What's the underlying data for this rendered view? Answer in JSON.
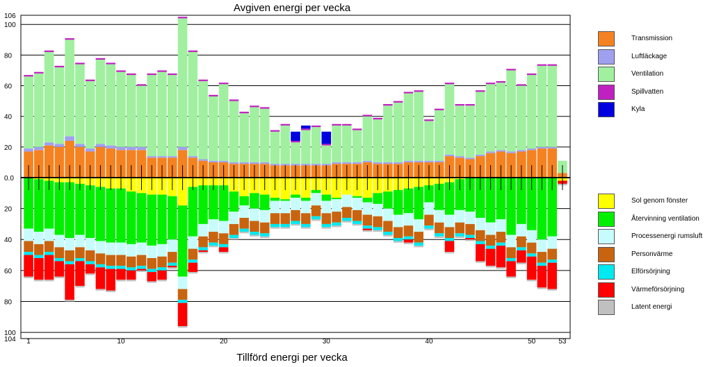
{
  "chart_data": {
    "type": "bar",
    "stacked": true,
    "title": "Avgiven energi per vecka",
    "subtitle": "Tillförd energi per vecka",
    "x": [
      1,
      2,
      3,
      4,
      5,
      6,
      7,
      8,
      9,
      10,
      11,
      12,
      13,
      14,
      15,
      16,
      17,
      18,
      19,
      20,
      21,
      22,
      23,
      24,
      25,
      26,
      27,
      28,
      29,
      30,
      31,
      32,
      33,
      34,
      35,
      36,
      37,
      38,
      39,
      40,
      41,
      42,
      43,
      44,
      45,
      46,
      47,
      48,
      49,
      50,
      51,
      52,
      53
    ],
    "x_ticks": [
      1,
      10,
      20,
      30,
      40,
      50,
      53
    ],
    "y_top_range": [
      0,
      106
    ],
    "y_bottom_range": [
      0,
      104
    ],
    "y_top_ticks": [
      106,
      100,
      80,
      60,
      40,
      20
    ],
    "y_bottom_ticks": [
      0.0,
      20,
      40,
      60,
      80,
      100,
      104
    ],
    "grid": true,
    "legend_position": "right",
    "top_series": [
      {
        "name": "Transmission",
        "color": "#f58220",
        "values": [
          17,
          18,
          21,
          20,
          24,
          20,
          17,
          20,
          19,
          18,
          18,
          18,
          13,
          13,
          13,
          18,
          13,
          11,
          10,
          10,
          9,
          9,
          9,
          9,
          8,
          8,
          8,
          8,
          8,
          8,
          9,
          9,
          9,
          10,
          9,
          9,
          9,
          10,
          10,
          10,
          10,
          14,
          13,
          12,
          14,
          16,
          17,
          16,
          17,
          18,
          19,
          19,
          3
        ]
      },
      {
        "name": "Luftläckage",
        "color": "#a0a0f0",
        "values": [
          2,
          2,
          2,
          2,
          3,
          2,
          2,
          2,
          2,
          2,
          2,
          2,
          1,
          1,
          1,
          2,
          1,
          1,
          1,
          1,
          1,
          1,
          1,
          1,
          1,
          1,
          1,
          1,
          1,
          1,
          1,
          1,
          1,
          1,
          1,
          1,
          1,
          1,
          1,
          1,
          1,
          1,
          1,
          1,
          1,
          1,
          1,
          1,
          1,
          1,
          1,
          1,
          0
        ]
      },
      {
        "name": "Ventilation",
        "color": "#a0f0a0",
        "values": [
          47,
          48,
          59,
          50,
          63,
          52,
          44,
          55,
          53,
          49,
          47,
          40,
          53,
          55,
          53,
          84,
          68,
          51,
          42,
          50,
          40,
          32,
          36,
          35,
          21,
          25,
          14,
          22,
          24,
          12,
          24,
          24,
          21,
          29,
          28,
          37,
          39,
          44,
          45,
          26,
          33,
          46,
          33,
          34,
          41,
          44,
          44,
          53,
          42,
          48,
          53,
          53,
          8
        ]
      },
      {
        "name": "Spillvatten",
        "color": "#c020c0",
        "values": [
          1,
          1,
          1,
          1,
          1,
          1,
          1,
          1,
          1,
          1,
          1,
          1,
          1,
          1,
          1,
          1,
          1,
          1,
          1,
          1,
          1,
          1,
          1,
          1,
          1,
          1,
          1,
          1,
          1,
          1,
          1,
          1,
          1,
          1,
          1,
          1,
          1,
          1,
          1,
          1,
          1,
          1,
          1,
          1,
          1,
          1,
          1,
          1,
          1,
          1,
          1,
          1,
          0
        ]
      },
      {
        "name": "Kyla",
        "color": "#0000e0",
        "values": [
          0,
          0,
          0,
          0,
          0,
          0,
          0,
          0,
          0,
          0,
          0,
          0,
          0,
          0,
          0,
          0,
          0,
          0,
          0,
          0,
          0,
          0,
          0,
          0,
          0,
          0,
          6,
          2,
          0,
          8,
          0,
          0,
          0,
          0,
          0,
          0,
          0,
          0,
          0,
          0,
          0,
          0,
          0,
          0,
          0,
          0,
          0,
          0,
          0,
          0,
          0,
          0,
          0
        ]
      }
    ],
    "bottom_series": [
      {
        "name": "Sol genom fönster",
        "color": "#ffff00",
        "values": [
          0,
          1,
          2,
          3,
          3,
          4,
          5,
          6,
          7,
          7,
          9,
          10,
          11,
          11,
          12,
          18,
          6,
          5,
          5,
          5,
          9,
          12,
          10,
          11,
          13,
          14,
          11,
          13,
          8,
          11,
          13,
          11,
          12,
          13,
          10,
          9,
          8,
          7,
          6,
          5,
          4,
          3,
          1,
          0,
          0,
          0,
          0,
          0,
          0,
          0,
          0,
          0,
          2
        ]
      },
      {
        "name": "Återvinning ventilation",
        "color": "#00f000",
        "values": [
          33,
          34,
          31,
          34,
          36,
          33,
          34,
          35,
          35,
          35,
          34,
          32,
          33,
          32,
          28,
          46,
          32,
          25,
          22,
          23,
          13,
          6,
          10,
          10,
          2,
          1,
          2,
          2,
          2,
          4,
          1,
          0,
          1,
          3,
          7,
          11,
          16,
          16,
          21,
          11,
          17,
          21,
          20,
          22,
          26,
          29,
          27,
          37,
          30,
          34,
          40,
          38,
          0
        ]
      },
      {
        "name": "Processenergi rumsluft",
        "color": "#c8fcfc",
        "values": [
          8,
          8,
          8,
          8,
          8,
          8,
          8,
          8,
          8,
          8,
          8,
          8,
          8,
          8,
          8,
          8,
          8,
          8,
          8,
          8,
          8,
          8,
          8,
          8,
          8,
          8,
          8,
          8,
          8,
          8,
          8,
          8,
          8,
          8,
          8,
          8,
          8,
          8,
          8,
          8,
          8,
          8,
          8,
          8,
          8,
          8,
          8,
          8,
          8,
          8,
          8,
          8,
          0
        ]
      },
      {
        "name": "Personvärme",
        "color": "#c86410",
        "values": [
          7,
          7,
          7,
          7,
          7,
          7,
          7,
          7,
          7,
          7,
          7,
          7,
          7,
          7,
          7,
          7,
          7,
          7,
          7,
          7,
          7,
          7,
          7,
          7,
          7,
          7,
          7,
          7,
          7,
          7,
          7,
          7,
          7,
          7,
          7,
          7,
          7,
          7,
          7,
          7,
          7,
          7,
          7,
          7,
          7,
          7,
          7,
          7,
          7,
          7,
          7,
          7,
          0
        ]
      },
      {
        "name": "Elförsörjning",
        "color": "#00e8f0",
        "values": [
          2,
          2,
          2,
          2,
          2,
          2,
          2,
          2,
          2,
          2,
          2,
          2,
          2,
          2,
          2,
          2,
          2,
          2,
          2,
          2,
          2,
          2,
          2,
          2,
          2,
          2,
          2,
          2,
          2,
          2,
          2,
          2,
          2,
          2,
          2,
          2,
          2,
          2,
          2,
          2,
          2,
          2,
          2,
          2,
          2,
          2,
          2,
          2,
          2,
          2,
          2,
          2,
          0
        ]
      },
      {
        "name": "Värmeförsörjning",
        "color": "#ff0000",
        "values": [
          14,
          14,
          16,
          10,
          23,
          16,
          6,
          14,
          14,
          7,
          6,
          1,
          6,
          6,
          1,
          15,
          6,
          1,
          0,
          3,
          0,
          0,
          0,
          0,
          0,
          0,
          0,
          0,
          0,
          0,
          0,
          0,
          0,
          1,
          0,
          0,
          0,
          2,
          0,
          0,
          0,
          7,
          0,
          1,
          11,
          11,
          14,
          10,
          8,
          15,
          14,
          17,
          2
        ]
      },
      {
        "name": "Latent energi",
        "color": "#c0c0c0",
        "values": [
          1,
          1,
          1,
          1,
          1,
          1,
          1,
          1,
          1,
          1,
          1,
          1,
          1,
          1,
          1,
          1,
          1,
          1,
          1,
          1,
          1,
          1,
          1,
          1,
          1,
          1,
          1,
          1,
          1,
          1,
          1,
          1,
          1,
          1,
          1,
          1,
          1,
          1,
          1,
          1,
          1,
          1,
          1,
          1,
          1,
          1,
          1,
          1,
          1,
          1,
          1,
          1,
          1
        ]
      }
    ]
  }
}
